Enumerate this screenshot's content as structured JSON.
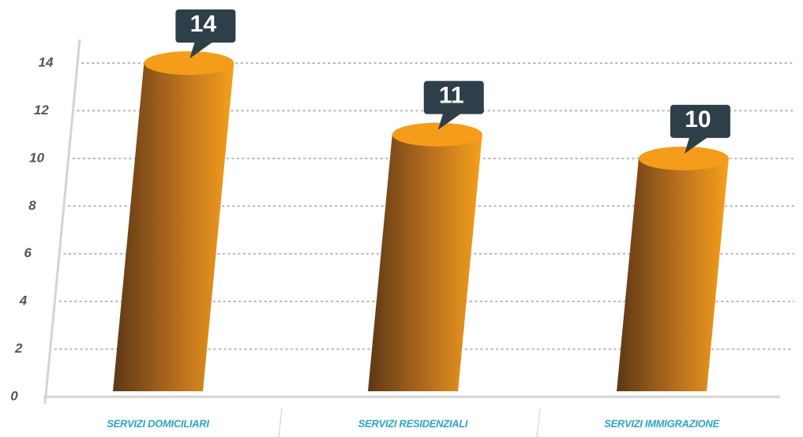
{
  "chart_data": {
    "type": "bar",
    "categories": [
      "SERVIZI DOMICILIARI",
      "SERVIZI RESIDENZIALI",
      "SERVIZI IMMIGRAZIONE"
    ],
    "values": [
      14,
      11,
      10
    ],
    "color": "#f59c1a",
    "ylim": [
      0,
      14
    ],
    "yticks": [
      0,
      2,
      4,
      6,
      8,
      10,
      12,
      14
    ],
    "grid": true
  }
}
